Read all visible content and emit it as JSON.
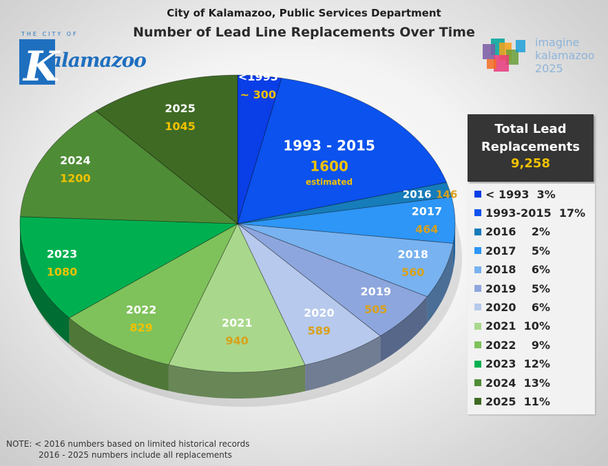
{
  "header": {
    "line1": "City of Kalamazoo, Public Services Department",
    "line2": "Number of Lead Line Replacements Over Time"
  },
  "logos": {
    "left_small": "THE CITY OF",
    "left_word": "alamazoo",
    "left_initial": "K",
    "right_line1": "imagine",
    "right_line2": "kalamazoo",
    "right_line3": "2025"
  },
  "total": {
    "label_line1": "Total Lead",
    "label_line2": "Replacements",
    "value": "9,258"
  },
  "notes": {
    "line1": "NOTE: < 2016 numbers based on limited historical records",
    "line2": "2016 - 2025 numbers include all replacements"
  },
  "colors": {
    "label_value_yellow": "#f2c200",
    "label_value_gold": "#d9a01a"
  },
  "chart_data": {
    "type": "pie",
    "title": "Number of Lead Line Replacements Over Time",
    "slices": [
      {
        "label": "<1993",
        "value_label": "~ 300",
        "value": 300,
        "color": "#0a3ee6",
        "legend": "< 1993  3%",
        "note": ""
      },
      {
        "label": "1993 - 2015",
        "value_label": "1600",
        "value": 1600,
        "color": "#0b52ee",
        "legend": "1993-2015  17%",
        "note": "estimated"
      },
      {
        "label": "2016",
        "value_label": "146",
        "value": 146,
        "color": "#167cba",
        "legend": "2016    2%",
        "note": ""
      },
      {
        "label": "2017",
        "value_label": "464",
        "value": 464,
        "color": "#2d96f6",
        "legend": "2017    5%",
        "note": ""
      },
      {
        "label": "2018",
        "value_label": "560",
        "value": 560,
        "color": "#78b2f0",
        "legend": "2018    6%",
        "note": ""
      },
      {
        "label": "2019",
        "value_label": "505",
        "value": 505,
        "color": "#8da6dd",
        "legend": "2019    5%",
        "note": ""
      },
      {
        "label": "2020",
        "value_label": "589",
        "value": 589,
        "color": "#b7c9ec",
        "legend": "2020    6%",
        "note": ""
      },
      {
        "label": "2021",
        "value_label": "940",
        "value": 940,
        "color": "#a9d88c",
        "legend": "2021  10%",
        "note": ""
      },
      {
        "label": "2022",
        "value_label": "829",
        "value": 829,
        "color": "#7fc15b",
        "legend": "2022    9%",
        "note": ""
      },
      {
        "label": "2023",
        "value_label": "1080",
        "value": 1080,
        "color": "#00b050",
        "legend": "2023  12%",
        "note": ""
      },
      {
        "label": "2024",
        "value_label": "1200",
        "value": 1200,
        "color": "#4f8c36",
        "legend": "2024  13%",
        "note": ""
      },
      {
        "label": "2025",
        "value_label": "1045",
        "value": 1045,
        "color": "#3f6a24",
        "legend": "2025  11%",
        "note": ""
      }
    ]
  }
}
